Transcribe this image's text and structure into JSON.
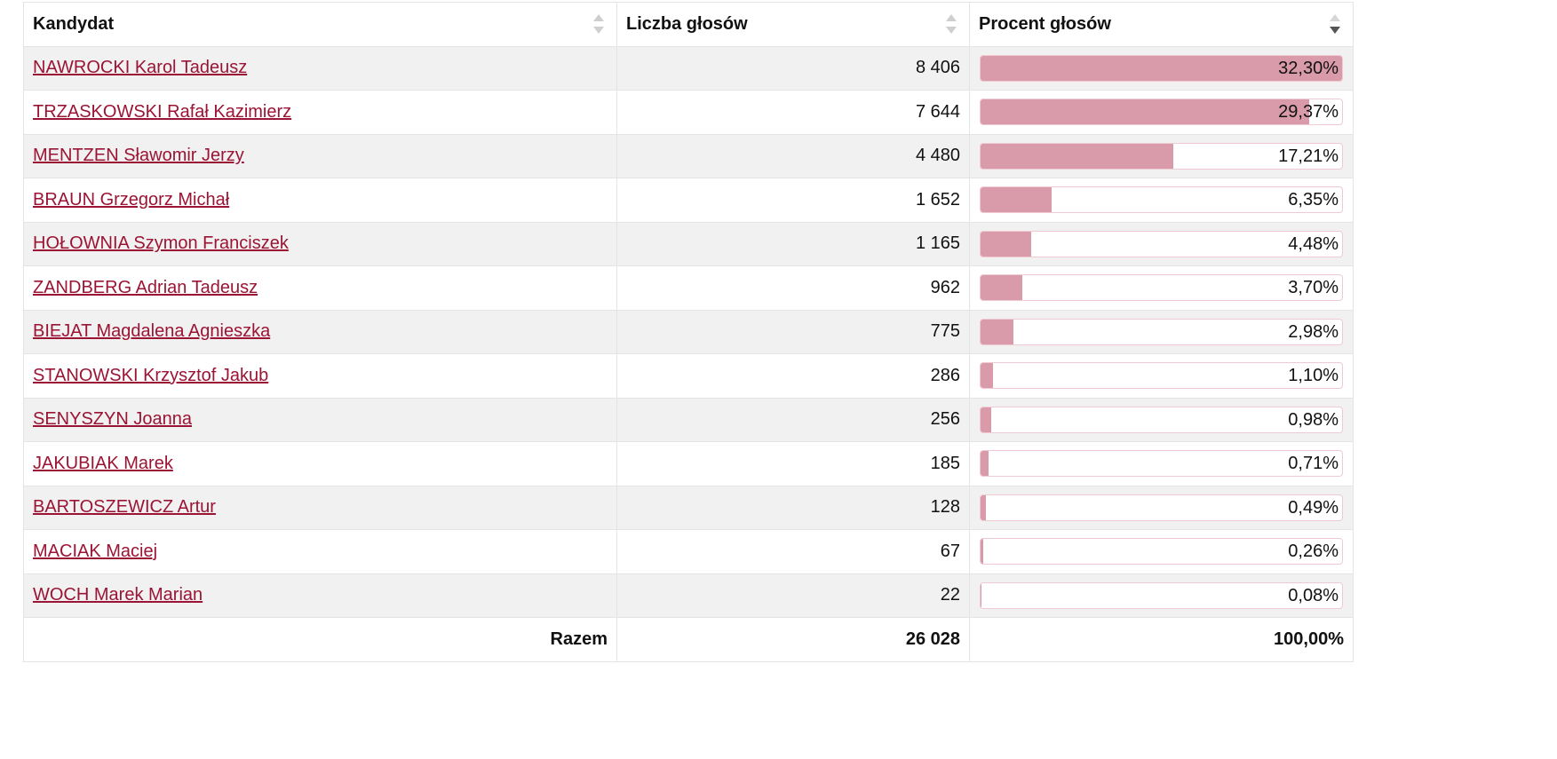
{
  "headers": {
    "candidate": "Kandydat",
    "votes": "Liczba głosów",
    "percent": "Procent głosów"
  },
  "rows": [
    {
      "name": "NAWROCKI Karol Tadeusz",
      "votes": "8 406",
      "percent": "32,30%",
      "share": 1.0
    },
    {
      "name": "TRZASKOWSKI Rafał Kazimierz",
      "votes": "7 644",
      "percent": "29,37%",
      "share": 0.909
    },
    {
      "name": "MENTZEN Sławomir Jerzy",
      "votes": "4 480",
      "percent": "17,21%",
      "share": 0.533
    },
    {
      "name": "BRAUN Grzegorz Michał",
      "votes": "1 652",
      "percent": "6,35%",
      "share": 0.197
    },
    {
      "name": "HOŁOWNIA Szymon Franciszek",
      "votes": "1 165",
      "percent": "4,48%",
      "share": 0.139
    },
    {
      "name": "ZANDBERG Adrian Tadeusz",
      "votes": "962",
      "percent": "3,70%",
      "share": 0.115
    },
    {
      "name": "BIEJAT Magdalena Agnieszka",
      "votes": "775",
      "percent": "2,98%",
      "share": 0.092
    },
    {
      "name": "STANOWSKI Krzysztof Jakub",
      "votes": "286",
      "percent": "1,10%",
      "share": 0.034
    },
    {
      "name": "SENYSZYN Joanna",
      "votes": "256",
      "percent": "0,98%",
      "share": 0.03
    },
    {
      "name": "JAKUBIAK Marek",
      "votes": "185",
      "percent": "0,71%",
      "share": 0.022
    },
    {
      "name": "BARTOSZEWICZ Artur",
      "votes": "128",
      "percent": "0,49%",
      "share": 0.015
    },
    {
      "name": "MACIAK Maciej",
      "votes": "67",
      "percent": "0,26%",
      "share": 0.008
    },
    {
      "name": "WOCH Marek Marian",
      "votes": "22",
      "percent": "0,08%",
      "share": 0.002
    }
  ],
  "footer": {
    "label": "Razem",
    "votes": "26 028",
    "percent": "100,00%"
  },
  "colors": {
    "link": "#9b1434",
    "bar_fill": "#d99aaa",
    "row_alt": "#f1f1f1"
  }
}
